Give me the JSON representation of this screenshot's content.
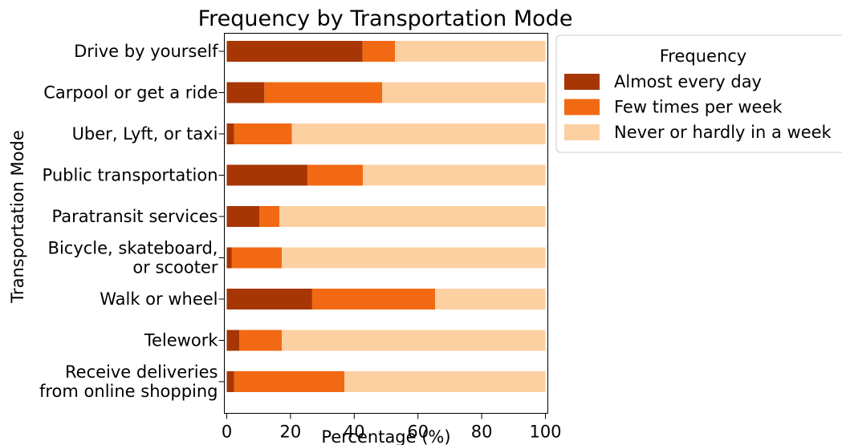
{
  "chart_data": {
    "type": "bar",
    "orientation": "horizontal",
    "stacked": true,
    "title": "Frequency by Transportation Mode",
    "xlabel": "Percentage (%)",
    "ylabel": "Transportation Mode",
    "xlim": [
      0,
      100
    ],
    "xticks": [
      0,
      20,
      40,
      60,
      80,
      100
    ],
    "grid": false,
    "legend": {
      "title": "Frequency",
      "placement": "outside-top-right"
    },
    "categories": [
      [
        "Drive by yourself"
      ],
      [
        "Carpool or get a ride"
      ],
      [
        "Uber, Lyft, or taxi"
      ],
      [
        "Public transportation"
      ],
      [
        "Paratransit services"
      ],
      [
        "Bicycle, skateboard,",
        "or scooter"
      ],
      [
        "Walk or wheel"
      ],
      [
        "Telework"
      ],
      [
        "Receive deliveries",
        "from online shopping"
      ]
    ],
    "series": [
      {
        "name": "Almost every day",
        "color": "#a63603",
        "values": [
          42.6,
          11.8,
          2.3,
          25.3,
          10.2,
          1.6,
          26.8,
          3.9,
          2.3
        ]
      },
      {
        "name": "Few times per week",
        "color": "#f16913",
        "values": [
          10.2,
          37.0,
          18.1,
          17.4,
          6.3,
          15.7,
          38.6,
          13.4,
          34.6
        ]
      },
      {
        "name": "Never or hardly in a week",
        "color": "#fdd0a2",
        "values": [
          47.2,
          51.2,
          79.6,
          57.3,
          83.5,
          82.7,
          34.6,
          82.7,
          63.1
        ]
      }
    ]
  }
}
